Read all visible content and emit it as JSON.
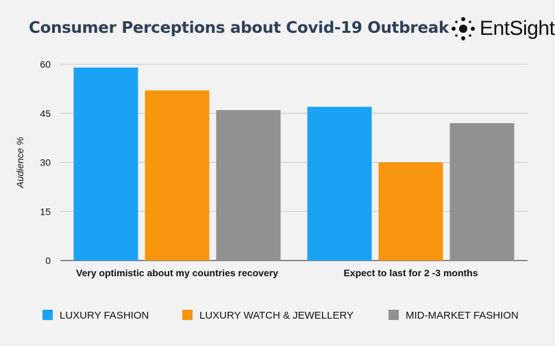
{
  "logo": {
    "text": "EntSight",
    "icon": "dot-cluster-icon"
  },
  "chart_data": {
    "type": "bar",
    "title": "Consumer Perceptions about Covid-19 Outbreak",
    "xlabel": "",
    "ylabel": "Audience %",
    "ylim": [
      0,
      60
    ],
    "yticks": [
      0,
      15,
      30,
      45,
      60
    ],
    "grid": true,
    "legend_position": "bottom",
    "categories": [
      "Very optimistic about my countries recovery",
      "Expect to last for 2 -3 months"
    ],
    "series": [
      {
        "name": "LUXURY FASHION",
        "color": "#1aa3f5",
        "values": [
          59,
          47
        ]
      },
      {
        "name": "LUXURY WATCH & JEWELLERY",
        "color": "#f7950f",
        "values": [
          52,
          30
        ]
      },
      {
        "name": "MID-MARKET FASHION",
        "color": "#919191",
        "values": [
          46,
          42
        ]
      }
    ]
  }
}
